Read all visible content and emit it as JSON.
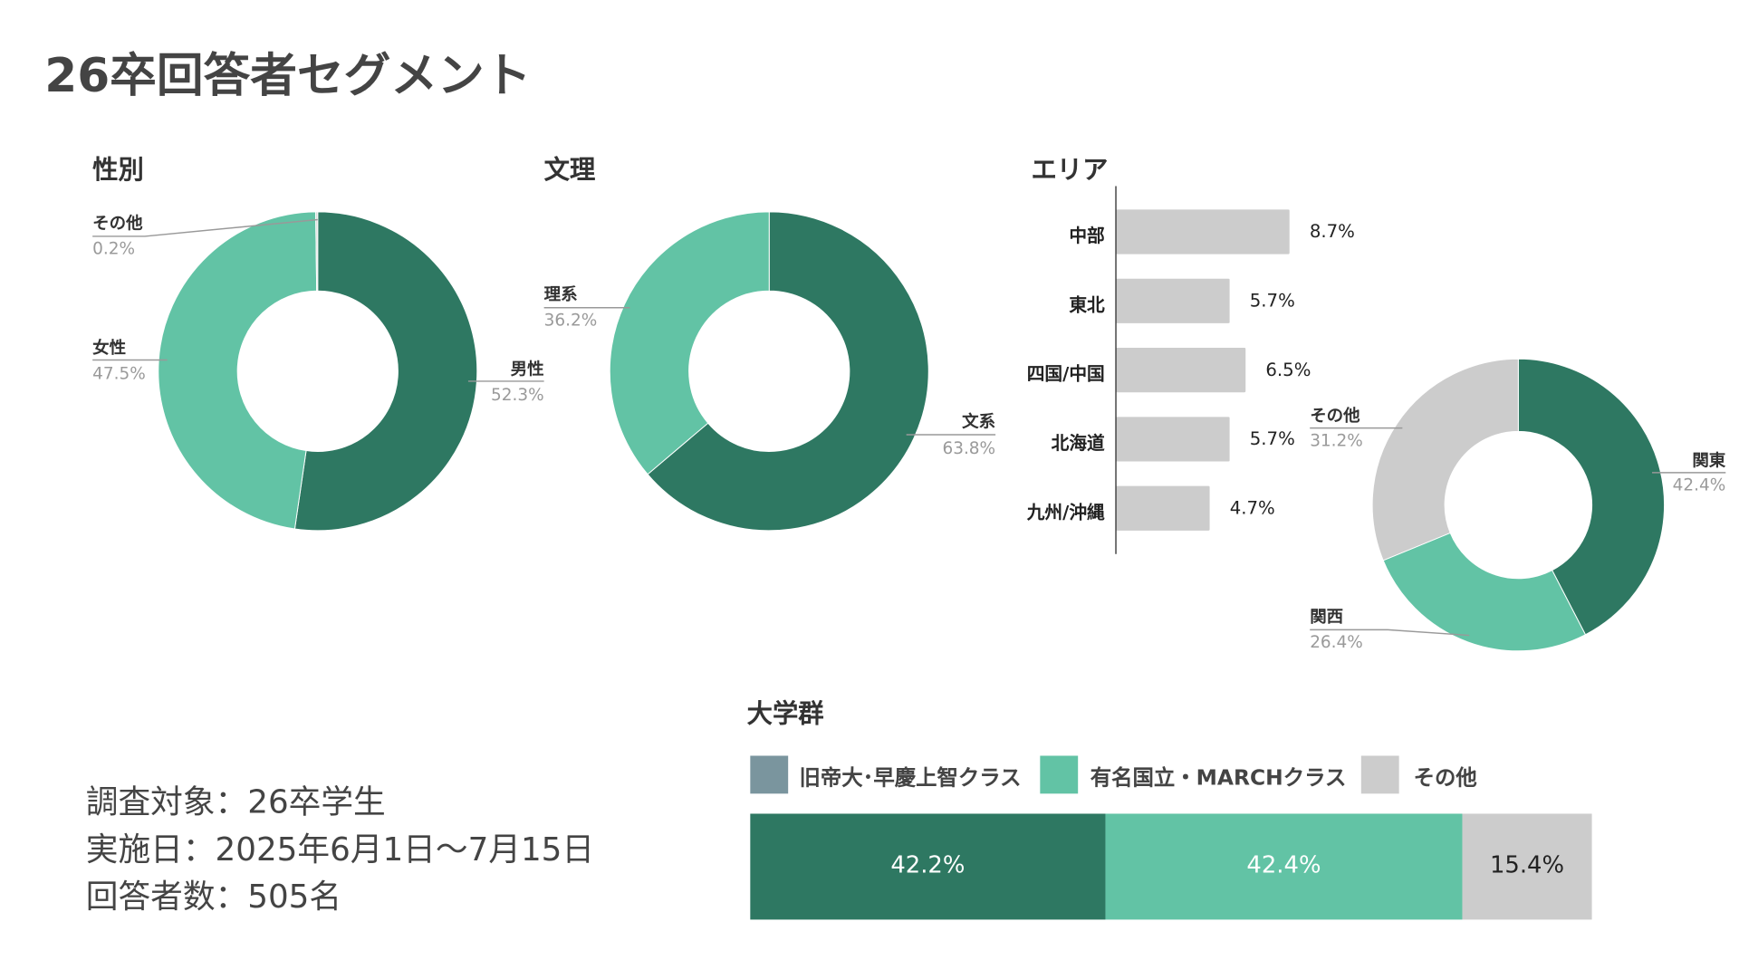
{
  "title": "26卒回答者セグメント",
  "colors": {
    "dark": "#2e7862",
    "light": "#62c3a5",
    "gray": "#cccccc",
    "slate": "#7a959e"
  },
  "footer": {
    "target": "調査対象：26卒学生",
    "date": "実施日：2025年6月1日〜7月15日",
    "count": "回答者数：505名"
  },
  "chart_data": [
    {
      "type": "pie",
      "title": "性別",
      "donut": true,
      "labels": [
        "男性",
        "女性",
        "その他"
      ],
      "values": [
        52.3,
        47.5,
        0.2
      ],
      "value_labels": [
        "52.3%",
        "47.5%",
        "0.2%"
      ]
    },
    {
      "type": "pie",
      "title": "文理",
      "donut": true,
      "labels": [
        "文系",
        "理系"
      ],
      "values": [
        63.8,
        36.2
      ],
      "value_labels": [
        "63.8%",
        "36.2%"
      ]
    },
    {
      "type": "bar",
      "title": "エリア",
      "orientation": "horizontal",
      "categories": [
        "中部",
        "東北",
        "四国/中国",
        "北海道",
        "九州/沖縄"
      ],
      "values": [
        8.7,
        5.7,
        6.5,
        5.7,
        4.7
      ],
      "value_labels": [
        "8.7%",
        "5.7%",
        "6.5%",
        "5.7%",
        "4.7%"
      ]
    },
    {
      "type": "pie",
      "donut": true,
      "labels": [
        "関東",
        "関西",
        "その他"
      ],
      "values": [
        42.4,
        26.4,
        31.2
      ],
      "value_labels": [
        "42.4%",
        "26.4%",
        "31.2%"
      ]
    },
    {
      "type": "bar",
      "title": "大学群",
      "stacked": true,
      "orientation": "horizontal",
      "legend": "top",
      "series": [
        {
          "name": "旧帝大･早慶上智クラス",
          "values": [
            42.2
          ],
          "label": "42.2%"
        },
        {
          "name": "有名国立・MARCHクラス",
          "values": [
            42.4
          ],
          "label": "42.4%"
        },
        {
          "name": "その他",
          "values": [
            15.4
          ],
          "label": "15.4%"
        }
      ]
    }
  ]
}
